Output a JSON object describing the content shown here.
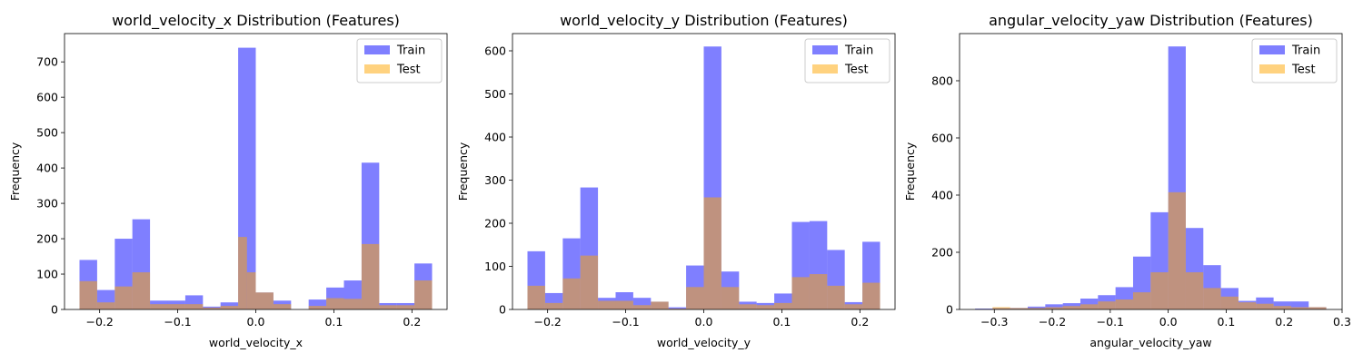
{
  "chart_data": [
    {
      "type": "histogram",
      "title": "world_velocity_x Distribution (Features)",
      "xlabel": "world_velocity_x",
      "ylabel": "Frequency",
      "xlim": [
        -0.245,
        0.245
      ],
      "ylim": [
        0,
        780
      ],
      "xticks": [
        -0.2,
        -0.1,
        0.0,
        0.1,
        0.2
      ],
      "xtick_labels": [
        "−0.2",
        "−0.1",
        "0.0",
        "0.1",
        "0.2"
      ],
      "yticks": [
        0,
        100,
        200,
        300,
        400,
        500,
        600,
        700
      ],
      "legend_position": "top-right",
      "bin_edges": [
        -0.2258,
        -0.2032,
        -0.1806,
        -0.1581,
        -0.1355,
        -0.1129,
        -0.0903,
        -0.0677,
        -0.0452,
        -0.0226,
        0.0,
        0.0226,
        0.0452,
        0.0677,
        0.0903,
        0.1129,
        0.1355,
        0.1581,
        0.1806,
        0.2032,
        0.2258
      ],
      "series": [
        {
          "name": "Train",
          "color": "#0000ff",
          "alpha": 0.5,
          "values": [
            140,
            55,
            200,
            255,
            25,
            25,
            40,
            8,
            20,
            740,
            48,
            25,
            0,
            28,
            62,
            82,
            415,
            18,
            18,
            130
          ]
        },
        {
          "name": "Test",
          "color": "#ffa500",
          "alpha": 0.5,
          "bin_edges": [
            -0.2258,
            -0.2032,
            -0.1806,
            -0.1581,
            -0.1355,
            -0.1129,
            -0.0903,
            -0.0677,
            -0.0452,
            -0.0226,
            -0.0113,
            0.0,
            0.0226,
            0.0452,
            0.0677,
            0.0903,
            0.1129,
            0.1355,
            0.1581,
            0.1806,
            0.2032,
            0.2258
          ],
          "values": [
            80,
            20,
            65,
            105,
            15,
            15,
            15,
            5,
            10,
            205,
            105,
            48,
            15,
            0,
            10,
            32,
            30,
            185,
            12,
            12,
            82
          ]
        }
      ]
    },
    {
      "type": "histogram",
      "title": "world_velocity_y Distribution (Features)",
      "xlabel": "world_velocity_y",
      "ylabel": "Frequency",
      "xlim": [
        -0.245,
        0.245
      ],
      "ylim": [
        0,
        640
      ],
      "xticks": [
        -0.2,
        -0.1,
        0.0,
        0.1,
        0.2
      ],
      "xtick_labels": [
        "−0.2",
        "−0.1",
        "0.0",
        "0.1",
        "0.2"
      ],
      "yticks": [
        0,
        100,
        200,
        300,
        400,
        500,
        600
      ],
      "legend_position": "top-right",
      "bin_edges": [
        -0.2258,
        -0.2032,
        -0.1806,
        -0.1581,
        -0.1355,
        -0.1129,
        -0.0903,
        -0.0677,
        -0.0452,
        -0.0226,
        0.0,
        0.0226,
        0.0452,
        0.0677,
        0.0903,
        0.1129,
        0.1355,
        0.1581,
        0.1806,
        0.2032,
        0.2258
      ],
      "series": [
        {
          "name": "Train",
          "color": "#0000ff",
          "alpha": 0.5,
          "values": [
            135,
            38,
            165,
            283,
            27,
            40,
            27,
            18,
            5,
            102,
            610,
            88,
            18,
            15,
            37,
            203,
            205,
            138,
            17,
            157
          ]
        },
        {
          "name": "Test",
          "color": "#ffa500",
          "alpha": 0.5,
          "values": [
            55,
            15,
            72,
            125,
            20,
            20,
            10,
            18,
            2,
            52,
            260,
            52,
            12,
            10,
            15,
            75,
            82,
            55,
            12,
            62
          ]
        }
      ]
    },
    {
      "type": "histogram",
      "title": "angular_velocity_yaw Distribution (Features)",
      "xlabel": "angular_velocity_yaw",
      "ylabel": "Frequency",
      "xlim": [
        -0.36,
        0.3
      ],
      "ylim": [
        0,
        965
      ],
      "xticks": [
        -0.3,
        -0.2,
        -0.1,
        0.0,
        0.1,
        0.2,
        0.3
      ],
      "xtick_labels": [
        "−0.3",
        "−0.2",
        "−0.1",
        "0.0",
        "0.1",
        "0.2",
        "0.3"
      ],
      "yticks": [
        0,
        200,
        400,
        600,
        800
      ],
      "legend_position": "top-right",
      "bin_edges": [
        -0.3332,
        -0.303,
        -0.2727,
        -0.2424,
        -0.2121,
        -0.1818,
        -0.1515,
        -0.1212,
        -0.0909,
        -0.0606,
        -0.0303,
        0.0,
        0.0303,
        0.0606,
        0.0909,
        0.1212,
        0.1515,
        0.1818,
        0.2121,
        0.2424,
        0.2727
      ],
      "series": [
        {
          "name": "Train",
          "color": "#0000ff",
          "alpha": 0.5,
          "values": [
            3,
            5,
            5,
            10,
            18,
            22,
            38,
            50,
            78,
            185,
            340,
            920,
            285,
            155,
            75,
            30,
            42,
            28,
            28,
            8
          ]
        },
        {
          "name": "Test",
          "color": "#ffa500",
          "alpha": 0.5,
          "values": [
            1,
            8,
            5,
            5,
            8,
            12,
            18,
            28,
            35,
            60,
            130,
            410,
            130,
            75,
            45,
            25,
            20,
            12,
            8,
            8
          ]
        }
      ]
    }
  ]
}
